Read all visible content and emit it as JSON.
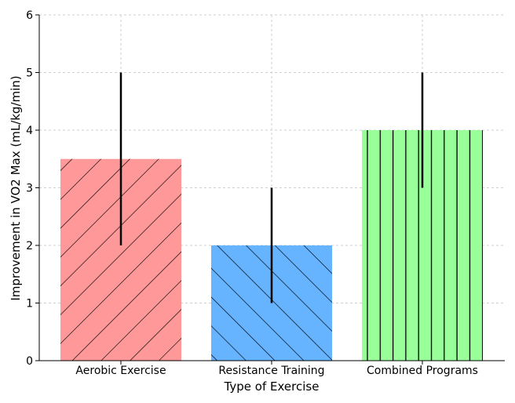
{
  "chart_data": {
    "type": "bar",
    "categories": [
      "Aerobic Exercise",
      "Resistance Training",
      "Combined Programs"
    ],
    "values": [
      3.5,
      2.0,
      4.0
    ],
    "errors": [
      1.5,
      1.0,
      1.0
    ],
    "colors": [
      "#ff9999",
      "#66b3ff",
      "#99ff99"
    ],
    "hatches": [
      "diagonal-up",
      "diagonal-down",
      "vertical"
    ],
    "title": "",
    "xlabel": "Type of Exercise",
    "ylabel": "Improvement in VO2 Max (mL/kg/min)",
    "ylim": [
      0,
      6
    ],
    "yticks": [
      "0",
      "1",
      "2",
      "3",
      "4",
      "5",
      "6"
    ],
    "grid": true
  }
}
